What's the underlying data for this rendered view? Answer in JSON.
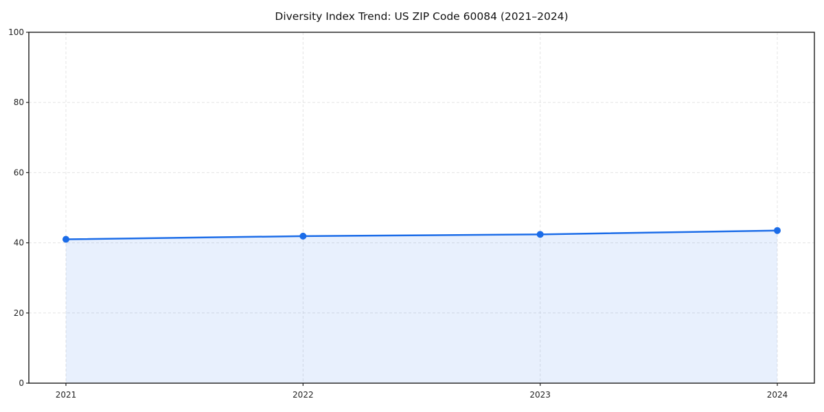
{
  "chart_data": {
    "type": "line",
    "title": "Diversity Index Trend: US ZIP Code 60084 (2021–2024)",
    "categories": [
      "2021",
      "2022",
      "2023",
      "2024"
    ],
    "values": [
      41.0,
      41.9,
      42.4,
      43.5
    ],
    "xlabel": "",
    "ylabel": "",
    "ylim": [
      0,
      100
    ],
    "yticks": [
      0,
      20,
      40,
      60,
      80,
      100
    ],
    "grid": true,
    "grid_style": "dashed",
    "legend_position": "none",
    "area_fill": true,
    "marker": "circle",
    "colors": {
      "line": "#1b6ce8",
      "fill": "#1b6ce8",
      "fill_opacity": 0.1,
      "grid": "#e3e3e3",
      "spine": "#1a1a1a",
      "text": "#222222",
      "background": "#ffffff"
    }
  }
}
